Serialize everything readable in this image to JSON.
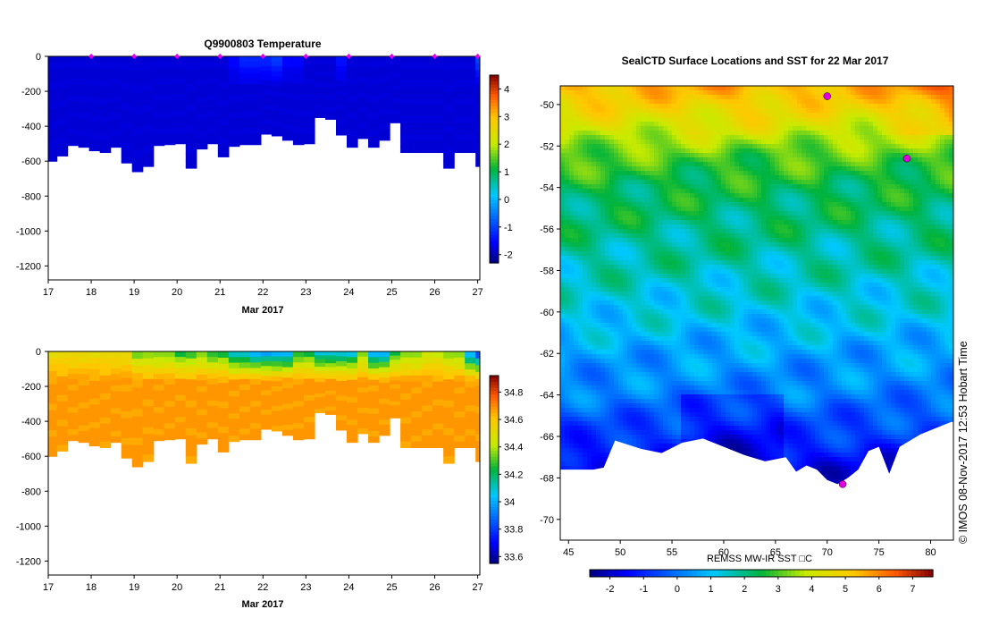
{
  "chart_data": [
    {
      "type": "heatmap",
      "id": "temp",
      "title": "Q9900803  Temperature",
      "xlabel": "Mar 2017",
      "ylabel": "",
      "x_ticks": [
        "17",
        "18",
        "19",
        "20",
        "21",
        "22",
        "23",
        "24",
        "25",
        "26",
        "27"
      ],
      "xlim": [
        17,
        27.05
      ],
      "y_ticks": [
        "0",
        "-200",
        "-400",
        "-600",
        "-800",
        "-1000",
        "-1200"
      ],
      "ylim": [
        -1280,
        0
      ],
      "colorbar": {
        "ticks": [
          "4",
          "3",
          "2",
          "1",
          "0",
          "-1",
          "-2"
        ],
        "range": [
          -2.3,
          4.5
        ]
      },
      "profile_days": [
        17.0,
        17.2,
        17.45,
        17.7,
        17.95,
        18.2,
        18.45,
        18.7,
        18.95,
        19.2,
        19.45,
        19.7,
        19.95,
        20.2,
        20.45,
        20.7,
        20.95,
        21.2,
        21.45,
        21.7,
        21.95,
        22.2,
        22.45,
        22.7,
        22.95,
        23.2,
        23.45,
        23.7,
        23.95,
        24.2,
        24.45,
        24.7,
        24.95,
        25.2,
        25.45,
        25.7,
        25.95,
        26.2,
        26.45,
        26.7,
        26.95
      ],
      "max_depth_m": [
        600,
        570,
        510,
        520,
        540,
        550,
        520,
        610,
        660,
        630,
        510,
        505,
        500,
        640,
        530,
        500,
        575,
        515,
        505,
        505,
        445,
        455,
        480,
        505,
        500,
        350,
        360,
        450,
        520,
        470,
        520,
        480,
        380,
        550,
        550,
        550,
        550,
        640,
        550,
        550,
        630
      ],
      "surface_temp_c": [
        -1.8,
        -1.8,
        -1.8,
        -1.8,
        -1.8,
        -1.8,
        -1.8,
        -1.8,
        -1.8,
        -1.8,
        -1.8,
        -1.8,
        -1.8,
        -1.8,
        -1.8,
        -1.8,
        -1.8,
        -1.5,
        -1.2,
        -1.2,
        -1.2,
        -1.0,
        -1.5,
        -1.5,
        -1.8,
        -1.8,
        -1.8,
        -1.4,
        -1.8,
        -1.8,
        -1.8,
        -1.8,
        -1.8,
        -1.8,
        -1.8,
        -1.8,
        -1.8,
        -1.8,
        -1.8,
        -1.8,
        -0.9
      ],
      "deep_temp_c": -1.8,
      "markers_at_days": [
        18,
        19,
        20,
        21,
        22,
        23,
        24,
        25,
        26,
        27
      ]
    },
    {
      "type": "heatmap",
      "id": "sal",
      "title": "",
      "xlabel": "Mar 2017",
      "ylabel": "",
      "x_ticks": [
        "17",
        "18",
        "19",
        "20",
        "21",
        "22",
        "23",
        "24",
        "25",
        "26",
        "27"
      ],
      "xlim": [
        17,
        27.05
      ],
      "y_ticks": [
        "0",
        "-200",
        "-400",
        "-600",
        "-800",
        "-1000",
        "-1200"
      ],
      "ylim": [
        -1280,
        0
      ],
      "colorbar": {
        "ticks": [
          "34.8",
          "34.6",
          "34.4",
          "34.2",
          "34",
          "33.8",
          "33.6"
        ],
        "range": [
          33.55,
          34.92
        ]
      },
      "profile_days": [
        17.0,
        17.2,
        17.45,
        17.7,
        17.95,
        18.2,
        18.45,
        18.7,
        18.95,
        19.2,
        19.45,
        19.7,
        19.95,
        20.2,
        20.45,
        20.7,
        20.95,
        21.2,
        21.45,
        21.7,
        21.95,
        22.2,
        22.45,
        22.7,
        22.95,
        23.2,
        23.45,
        23.7,
        23.95,
        24.2,
        24.45,
        24.7,
        24.95,
        25.2,
        25.45,
        25.7,
        25.95,
        26.2,
        26.45,
        26.7,
        26.95
      ],
      "max_depth_m": [
        600,
        570,
        510,
        520,
        540,
        550,
        520,
        610,
        660,
        630,
        510,
        505,
        500,
        640,
        530,
        500,
        575,
        515,
        505,
        505,
        445,
        455,
        480,
        505,
        500,
        350,
        360,
        450,
        520,
        470,
        520,
        480,
        380,
        550,
        550,
        550,
        550,
        640,
        550,
        550,
        630
      ],
      "surface_sal_psu": [
        34.5,
        34.5,
        34.5,
        34.5,
        34.5,
        34.5,
        34.5,
        34.5,
        34.3,
        34.3,
        34.3,
        34.3,
        34.2,
        34.2,
        34.3,
        34.2,
        34.2,
        34.0,
        34.0,
        33.9,
        33.9,
        33.9,
        33.9,
        34.2,
        34.2,
        34.0,
        34.0,
        34.0,
        34.0,
        34.3,
        33.9,
        33.9,
        34.2,
        34.3,
        34.3,
        34.4,
        34.4,
        34.3,
        34.3,
        33.9,
        33.7
      ],
      "deep_sal_psu": 34.68
    },
    {
      "type": "heatmap",
      "id": "sst",
      "title": "SealCTD Surface Locations and SST for 22 Mar 2017",
      "xlabel": "",
      "ylabel": "",
      "x_ticks": [
        "45",
        "50",
        "55",
        "60",
        "65",
        "70",
        "75",
        "80"
      ],
      "xlim": [
        44.2,
        82.2
      ],
      "y_ticks": [
        "-50",
        "-52",
        "-54",
        "-56",
        "-58",
        "-60",
        "-62",
        "-64",
        "-66",
        "-68",
        "-70"
      ],
      "ylim": [
        -71.0,
        -49.1
      ],
      "colorbar": {
        "label": "REMSS MW-IR SST □C",
        "ticks": [
          "-2",
          "-1",
          "0",
          "1",
          "2",
          "3",
          "4",
          "5",
          "6",
          "7"
        ],
        "range": [
          -2.6,
          7.6
        ]
      },
      "sst_by_latitude": {
        "lat": [
          -49.5,
          -51,
          -52.5,
          -54,
          -56,
          -58,
          -60,
          -62,
          -64,
          -66,
          -67.5
        ],
        "sst_c": [
          5.2,
          4.2,
          3.0,
          2.4,
          2.0,
          1.6,
          1.2,
          0.6,
          0.1,
          -0.8,
          -1.6
        ]
      },
      "coast_outline": {
        "lon": [
          47.4,
          48.4,
          49.5,
          52,
          54,
          56,
          58,
          60,
          62,
          64,
          66,
          67,
          68,
          69,
          70,
          71,
          72,
          73,
          74,
          75,
          76,
          77,
          79,
          81,
          82
        ],
        "lat": [
          -67.6,
          -67.5,
          -66.2,
          -66.6,
          -66.8,
          -66.3,
          -66.1,
          -66.5,
          -66.9,
          -67.2,
          -67.0,
          -67.7,
          -67.4,
          -67.6,
          -68.1,
          -68.3,
          -68.0,
          -67.6,
          -66.7,
          -66.5,
          -67.8,
          -66.5,
          -65.9,
          -65.5,
          -65.3
        ]
      },
      "marker_locations": [
        {
          "lon": 70.0,
          "lat": -49.6
        },
        {
          "lon": 71.5,
          "lat": -68.3
        },
        {
          "lon": 77.7,
          "lat": -52.6
        }
      ]
    }
  ],
  "footer": {
    "timestamp": "© IMOS 08-Nov-2017 12:53 Hobart Time"
  },
  "colors": {
    "fill_max_depth": "#ffffff",
    "marker": "#e000e0"
  }
}
